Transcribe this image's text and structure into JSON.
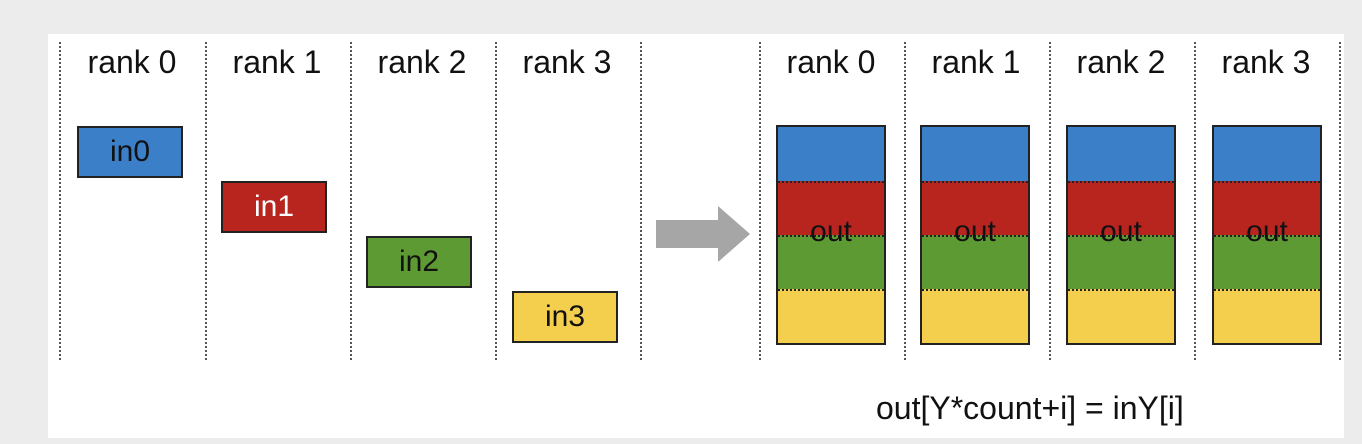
{
  "before": {
    "ranks": [
      "rank 0",
      "rank 1",
      "rank 2",
      "rank 3"
    ],
    "inputs": [
      {
        "label": "in0",
        "color": "#3a7fc8",
        "text_color": "#111111"
      },
      {
        "label": "in1",
        "color": "#b8251f",
        "text_color": "#ffffff"
      },
      {
        "label": "in2",
        "color": "#5e9a33",
        "text_color": "#111111"
      },
      {
        "label": "in3",
        "color": "#f4cf4d",
        "text_color": "#111111"
      }
    ]
  },
  "after": {
    "ranks": [
      "rank 0",
      "rank 1",
      "rank 2",
      "rank 3"
    ],
    "output_label": "out",
    "segment_colors": [
      "#3a7fc8",
      "#b8251f",
      "#5e9a33",
      "#f4cf4d"
    ]
  },
  "arrow": {
    "icon": "right-arrow-icon",
    "color": "#a6a6a6"
  },
  "formula": "out[Y*count+i] = inY[i]"
}
